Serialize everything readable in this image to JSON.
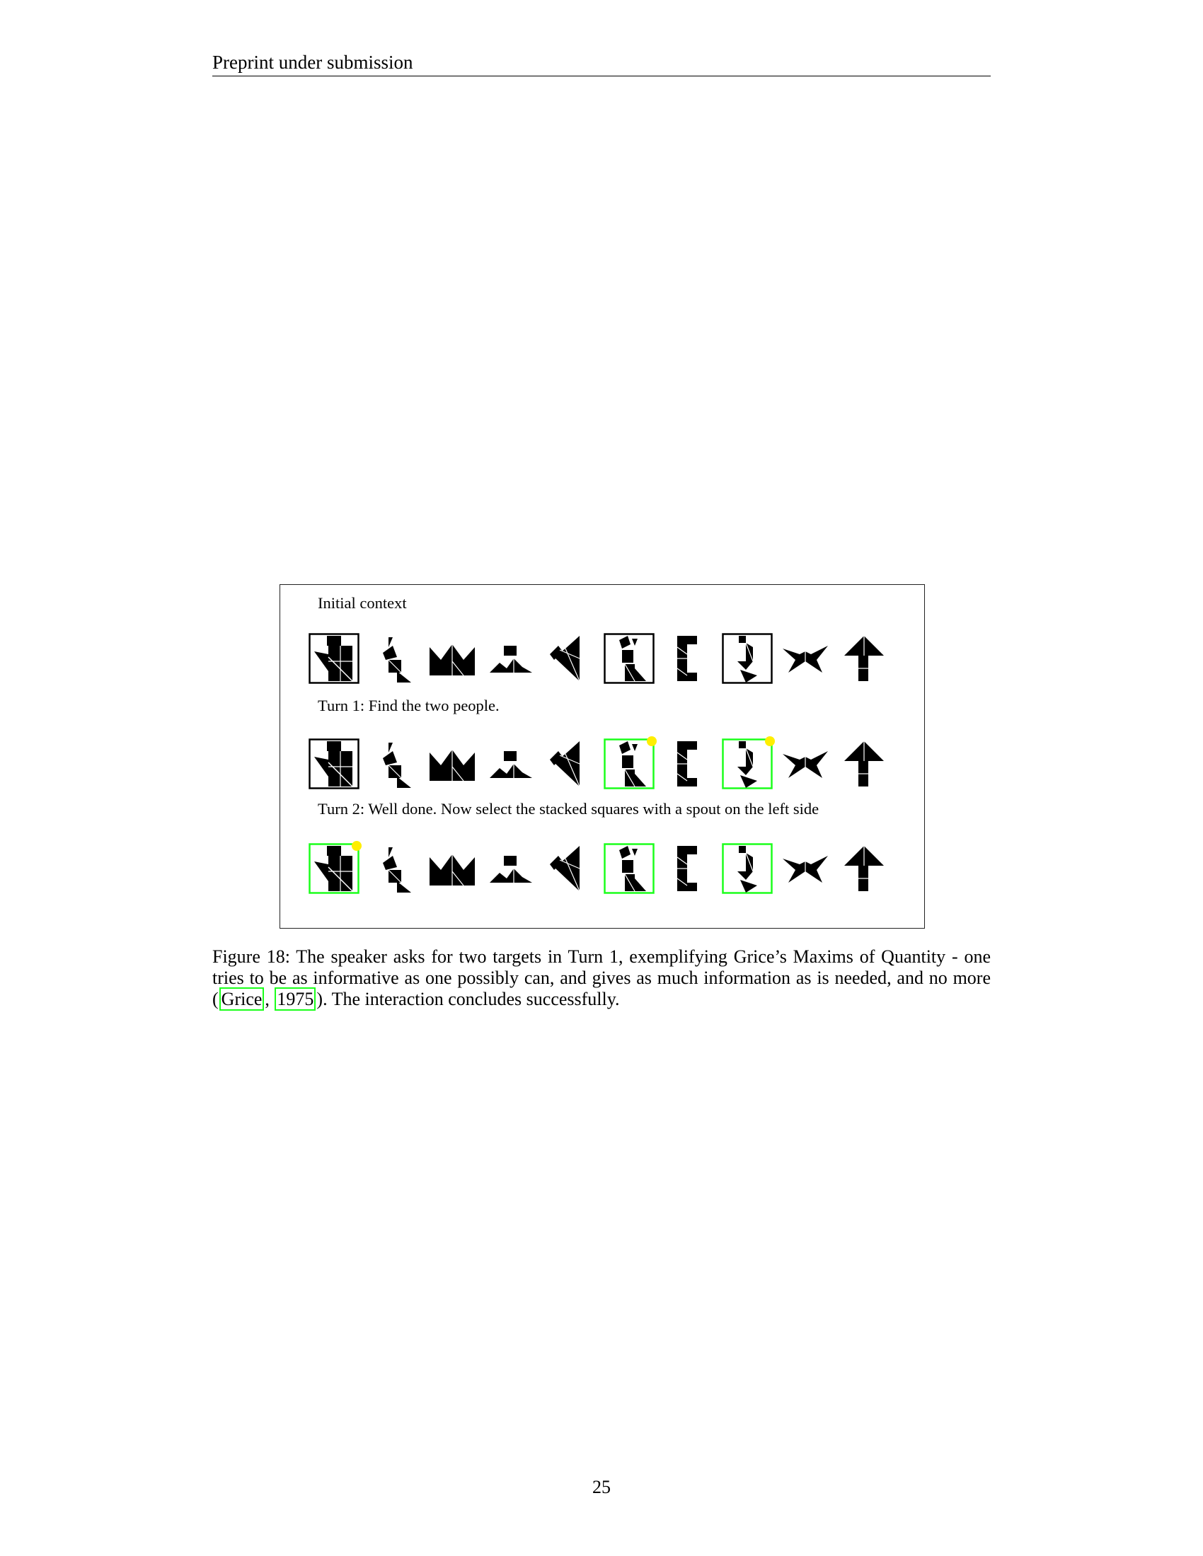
{
  "header": {
    "title": "Preprint under submission"
  },
  "figure": {
    "rows": [
      {
        "label": "Initial context",
        "frames": [
          "black",
          "none",
          "none",
          "none",
          "none",
          "black",
          "none",
          "black",
          "none",
          "none"
        ],
        "dots": []
      },
      {
        "label": "Turn 1: Find the two people.",
        "frames": [
          "black",
          "none",
          "none",
          "none",
          "none",
          "green",
          "none",
          "green",
          "none",
          "none"
        ],
        "dots": [
          5,
          7
        ]
      },
      {
        "label": "Turn 2: Well done. Now select the stacked squares with a spout on the left side",
        "frames": [
          "green",
          "none",
          "none",
          "none",
          "none",
          "green",
          "none",
          "green",
          "none",
          "none"
        ],
        "dots": [
          0
        ]
      }
    ],
    "shapes": [
      "teapot-tangram-icon",
      "kneeling-figure-tangram-icon",
      "crown-tangram-icon",
      "mountain-tangram-icon",
      "arrowhead-tangram-icon",
      "standing-person-tangram-icon",
      "bracket-tangram-icon",
      "walking-person-tangram-icon",
      "bird-tangram-icon",
      "arrow-up-tangram-icon"
    ],
    "colors": {
      "black_frame": "#000000",
      "green_frame": "#1bff1b",
      "selection_dot": "#ffee00"
    }
  },
  "caption": {
    "before": "Figure 18: The speaker asks for two targets in Turn 1, exemplifying Grice’s Maxims of Quantity - one tries to be as informative as one possibly can, and gives as much information as is needed, and no more (",
    "cite_author": "Grice",
    "cite_sep": ", ",
    "cite_year": "1975",
    "after": "). The interaction concludes successfully."
  },
  "page_number": "25"
}
